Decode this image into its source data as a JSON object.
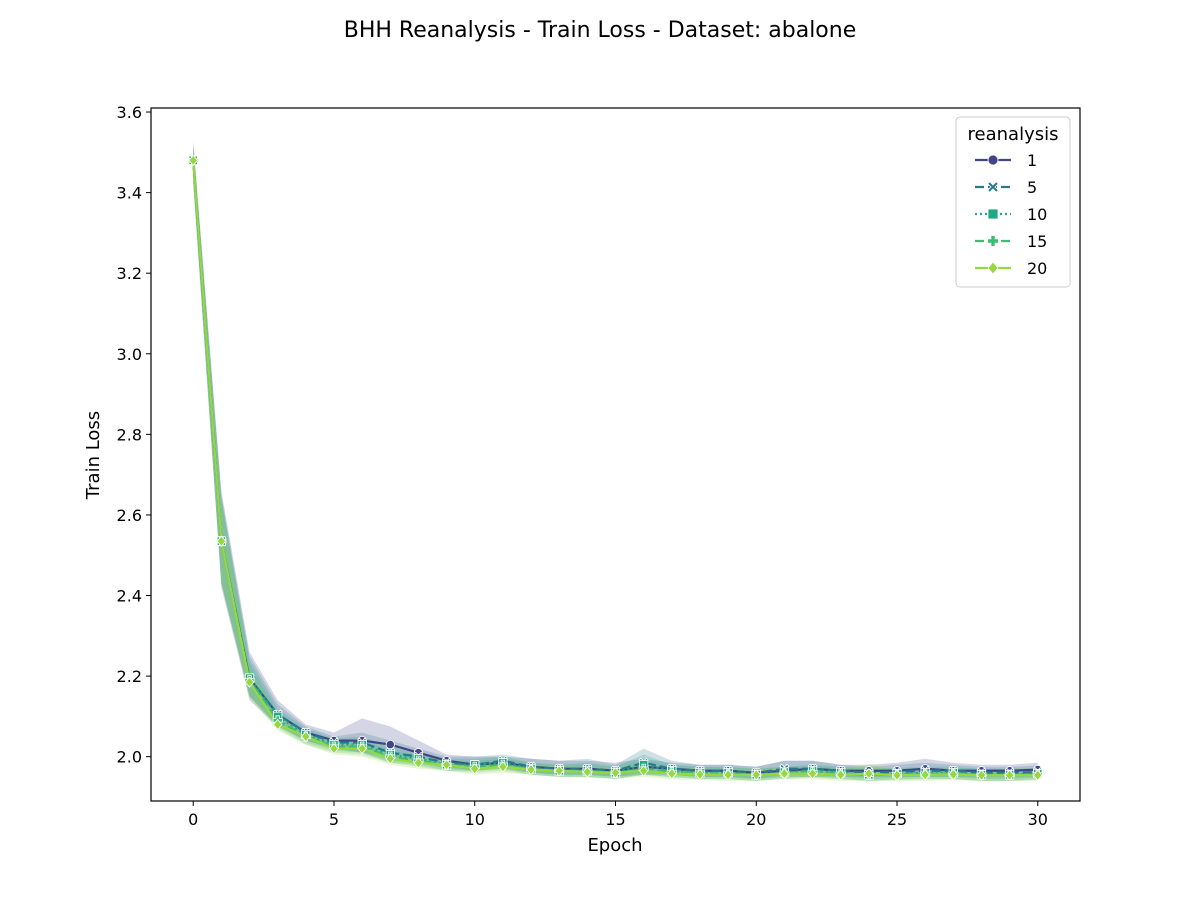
{
  "chart_data": {
    "type": "line",
    "title": "BHH Reanalysis - Train Loss - Dataset: abalone",
    "xlabel": "Epoch",
    "ylabel": "Train Loss",
    "xlim": [
      -1.5,
      31.5
    ],
    "ylim": [
      1.89,
      3.61
    ],
    "xticks": [
      0,
      5,
      10,
      15,
      20,
      25,
      30
    ],
    "yticks": [
      2.0,
      2.2,
      2.4,
      2.6,
      2.8,
      3.0,
      3.2,
      3.4,
      3.6
    ],
    "grid": false,
    "legend": {
      "title": "reanalysis",
      "placement": "top-right"
    },
    "x": [
      0,
      1,
      2,
      3,
      4,
      5,
      6,
      7,
      8,
      9,
      10,
      11,
      12,
      13,
      14,
      15,
      16,
      17,
      18,
      19,
      20,
      21,
      22,
      23,
      24,
      25,
      26,
      27,
      28,
      29,
      30
    ],
    "series": [
      {
        "name": "1",
        "color": "#414487",
        "dash": "solid",
        "marker": "circle",
        "values": [
          3.48,
          2.535,
          2.195,
          2.105,
          2.06,
          2.04,
          2.04,
          2.03,
          2.01,
          1.99,
          1.98,
          1.985,
          1.975,
          1.97,
          1.97,
          1.965,
          1.975,
          1.97,
          1.965,
          1.965,
          1.96,
          1.965,
          1.97,
          1.965,
          1.965,
          1.965,
          1.97,
          1.965,
          1.965,
          1.965,
          1.968
        ],
        "band_upper": [
          3.53,
          2.66,
          2.26,
          2.14,
          2.08,
          2.06,
          2.095,
          2.075,
          2.04,
          2.005,
          2.0,
          2.0,
          1.995,
          1.99,
          1.99,
          1.985,
          1.995,
          1.985,
          1.98,
          1.98,
          1.975,
          1.99,
          1.99,
          1.98,
          1.98,
          1.985,
          1.995,
          1.985,
          1.98,
          1.98,
          1.985
        ],
        "band_lower": [
          3.42,
          2.42,
          2.14,
          2.075,
          2.04,
          2.02,
          2.01,
          2.0,
          1.99,
          1.975,
          1.965,
          1.97,
          1.96,
          1.955,
          1.955,
          1.95,
          1.955,
          1.955,
          1.95,
          1.95,
          1.945,
          1.95,
          1.95,
          1.95,
          1.95,
          1.95,
          1.95,
          1.95,
          1.95,
          1.95,
          1.95
        ]
      },
      {
        "name": "5",
        "color": "#2a788e",
        "dash": "dashed",
        "marker": "cross",
        "values": [
          3.48,
          2.535,
          2.195,
          2.105,
          2.06,
          2.035,
          2.035,
          2.01,
          2.0,
          1.985,
          1.98,
          1.99,
          1.975,
          1.97,
          1.97,
          1.965,
          1.985,
          1.97,
          1.965,
          1.965,
          1.96,
          1.97,
          1.97,
          1.965,
          1.96,
          1.962,
          1.965,
          1.965,
          1.96,
          1.96,
          1.962
        ],
        "band_upper": [
          3.52,
          2.65,
          2.25,
          2.13,
          2.075,
          2.05,
          2.06,
          2.04,
          2.02,
          2.0,
          2.0,
          2.005,
          1.995,
          1.99,
          1.995,
          1.98,
          2.02,
          1.99,
          1.98,
          1.98,
          1.975,
          1.99,
          1.99,
          1.98,
          1.975,
          1.98,
          1.985,
          1.98,
          1.975,
          1.975,
          1.978
        ],
        "band_lower": [
          3.43,
          2.43,
          2.15,
          2.08,
          2.04,
          2.02,
          2.01,
          1.99,
          1.985,
          1.97,
          1.965,
          1.975,
          1.96,
          1.955,
          1.955,
          1.95,
          1.96,
          1.955,
          1.95,
          1.95,
          1.945,
          1.955,
          1.955,
          1.95,
          1.945,
          1.948,
          1.95,
          1.95,
          1.945,
          1.945,
          1.948
        ]
      },
      {
        "name": "10",
        "color": "#22a884",
        "dash": "dotted",
        "marker": "square",
        "values": [
          3.48,
          2.535,
          2.195,
          2.1,
          2.055,
          2.03,
          2.03,
          2.005,
          1.995,
          1.98,
          1.98,
          1.985,
          1.97,
          1.965,
          1.965,
          1.96,
          1.98,
          1.965,
          1.96,
          1.96,
          1.955,
          1.962,
          1.965,
          1.96,
          1.955,
          1.958,
          1.96,
          1.96,
          1.955,
          1.955,
          1.958
        ],
        "band_upper": [
          3.52,
          2.64,
          2.24,
          2.12,
          2.07,
          2.045,
          2.05,
          2.025,
          2.01,
          1.995,
          1.995,
          2.0,
          1.985,
          1.98,
          1.985,
          1.975,
          2.005,
          1.98,
          1.975,
          1.975,
          1.97,
          1.975,
          1.98,
          1.975,
          1.97,
          1.972,
          1.975,
          1.975,
          1.97,
          1.97,
          1.972
        ],
        "band_lower": [
          3.43,
          2.43,
          2.15,
          2.075,
          2.035,
          2.015,
          2.01,
          1.985,
          1.98,
          1.965,
          1.965,
          1.97,
          1.955,
          1.95,
          1.95,
          1.945,
          1.955,
          1.95,
          1.945,
          1.945,
          1.94,
          1.948,
          1.95,
          1.945,
          1.94,
          1.944,
          1.945,
          1.945,
          1.94,
          1.94,
          1.944
        ]
      },
      {
        "name": "15",
        "color": "#3fbc73",
        "dash": "dashed",
        "marker": "plus",
        "values": [
          3.48,
          2.535,
          2.19,
          2.09,
          2.05,
          2.025,
          2.025,
          2.0,
          1.99,
          1.98,
          1.975,
          1.98,
          1.97,
          1.965,
          1.965,
          1.96,
          1.97,
          1.962,
          1.96,
          1.958,
          1.955,
          1.96,
          1.962,
          1.958,
          1.955,
          1.956,
          1.958,
          1.958,
          1.955,
          1.955,
          1.956
        ],
        "band_upper": [
          3.52,
          2.64,
          2.23,
          2.11,
          2.065,
          2.04,
          2.04,
          2.015,
          2.005,
          1.99,
          1.99,
          1.995,
          1.985,
          1.98,
          1.98,
          1.975,
          1.99,
          1.978,
          1.975,
          1.972,
          1.97,
          1.975,
          1.978,
          1.972,
          1.975,
          1.97,
          1.972,
          1.972,
          1.97,
          1.97,
          1.97
        ],
        "band_lower": [
          3.43,
          2.43,
          2.15,
          2.07,
          2.03,
          2.01,
          2.005,
          1.985,
          1.975,
          1.965,
          1.96,
          1.965,
          1.955,
          1.95,
          1.95,
          1.945,
          1.955,
          1.948,
          1.945,
          1.944,
          1.94,
          1.945,
          1.948,
          1.944,
          1.94,
          1.942,
          1.944,
          1.944,
          1.94,
          1.94,
          1.942
        ]
      },
      {
        "name": "20",
        "color": "#95d840",
        "dash": "solid",
        "marker": "diamond",
        "values": [
          3.48,
          2.535,
          2.185,
          2.08,
          2.05,
          2.02,
          2.02,
          1.995,
          1.985,
          1.98,
          1.97,
          1.975,
          1.968,
          1.965,
          1.962,
          1.96,
          1.965,
          1.958,
          1.956,
          1.955,
          1.955,
          1.958,
          1.958,
          1.955,
          1.958,
          1.954,
          1.955,
          1.956,
          1.954,
          1.954,
          1.954
        ],
        "band_upper": [
          3.52,
          2.63,
          2.22,
          2.1,
          2.065,
          2.035,
          2.035,
          2.01,
          2.0,
          1.99,
          1.985,
          1.99,
          1.98,
          1.98,
          1.975,
          1.975,
          1.98,
          1.972,
          1.97,
          1.97,
          1.97,
          1.972,
          1.972,
          1.97,
          1.982,
          1.968,
          1.97,
          1.97,
          1.968,
          1.968,
          1.968
        ],
        "band_lower": [
          3.43,
          2.43,
          2.145,
          2.065,
          2.03,
          2.005,
          2.0,
          1.98,
          1.97,
          1.965,
          1.955,
          1.96,
          1.955,
          1.95,
          1.948,
          1.945,
          1.95,
          1.944,
          1.942,
          1.94,
          1.94,
          1.944,
          1.944,
          1.94,
          1.94,
          1.94,
          1.94,
          1.942,
          1.94,
          1.94,
          1.94
        ]
      }
    ]
  }
}
